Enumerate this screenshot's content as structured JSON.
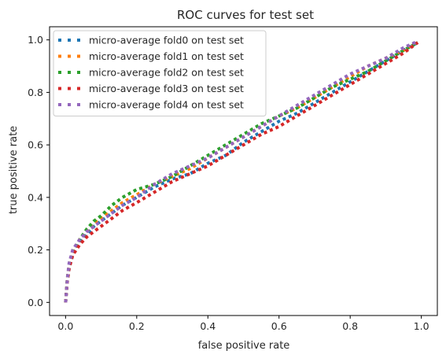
{
  "chart_data": {
    "type": "line",
    "title": "ROC curves for test set",
    "xlabel": "false positive rate",
    "ylabel": "true positive rate",
    "xlim": [
      -0.045,
      1.045
    ],
    "ylim": [
      -0.05,
      1.05
    ],
    "xticks": [
      "0.0",
      "0.2",
      "0.4",
      "0.6",
      "0.8",
      "1.0"
    ],
    "yticks": [
      "0.0",
      "0.2",
      "0.4",
      "0.6",
      "0.8",
      "1.0"
    ],
    "grid": false,
    "legend_position": "upper-left",
    "series": [
      {
        "name": "micro-average fold0 on test set",
        "color": "#1f77b4",
        "x": [
          0.0,
          0.005,
          0.01,
          0.02,
          0.04,
          0.06,
          0.08,
          0.1,
          0.13,
          0.16,
          0.2,
          0.25,
          0.3,
          0.35,
          0.4,
          0.45,
          0.5,
          0.55,
          0.6,
          0.65,
          0.7,
          0.75,
          0.8,
          0.85,
          0.9,
          0.95,
          0.99
        ],
        "y": [
          0.0,
          0.08,
          0.13,
          0.18,
          0.23,
          0.26,
          0.29,
          0.31,
          0.34,
          0.37,
          0.4,
          0.44,
          0.47,
          0.49,
          0.53,
          0.56,
          0.61,
          0.65,
          0.69,
          0.72,
          0.76,
          0.8,
          0.84,
          0.88,
          0.92,
          0.96,
          0.99
        ]
      },
      {
        "name": "micro-average fold1 on test set",
        "color": "#ff7f0e",
        "x": [
          0.0,
          0.005,
          0.01,
          0.02,
          0.04,
          0.06,
          0.08,
          0.1,
          0.13,
          0.16,
          0.2,
          0.25,
          0.3,
          0.35,
          0.4,
          0.45,
          0.5,
          0.55,
          0.6,
          0.65,
          0.7,
          0.75,
          0.8,
          0.85,
          0.9,
          0.95,
          0.99
        ],
        "y": [
          0.0,
          0.09,
          0.14,
          0.19,
          0.24,
          0.27,
          0.3,
          0.32,
          0.35,
          0.38,
          0.41,
          0.45,
          0.48,
          0.51,
          0.55,
          0.59,
          0.63,
          0.67,
          0.71,
          0.74,
          0.78,
          0.82,
          0.86,
          0.9,
          0.93,
          0.96,
          0.995
        ]
      },
      {
        "name": "micro-average fold2 on test set",
        "color": "#2ca02c",
        "x": [
          0.0,
          0.005,
          0.01,
          0.02,
          0.04,
          0.06,
          0.08,
          0.1,
          0.13,
          0.16,
          0.2,
          0.25,
          0.3,
          0.35,
          0.4,
          0.45,
          0.5,
          0.55,
          0.6,
          0.65,
          0.7,
          0.75,
          0.8,
          0.85,
          0.9,
          0.95,
          0.99
        ],
        "y": [
          0.0,
          0.09,
          0.14,
          0.19,
          0.24,
          0.28,
          0.31,
          0.33,
          0.37,
          0.4,
          0.43,
          0.45,
          0.48,
          0.52,
          0.56,
          0.6,
          0.64,
          0.68,
          0.71,
          0.74,
          0.78,
          0.82,
          0.85,
          0.88,
          0.92,
          0.96,
          0.99
        ]
      },
      {
        "name": "micro-average fold3 on test set",
        "color": "#d62728",
        "x": [
          0.0,
          0.005,
          0.01,
          0.02,
          0.04,
          0.06,
          0.08,
          0.1,
          0.13,
          0.16,
          0.2,
          0.25,
          0.3,
          0.35,
          0.4,
          0.45,
          0.5,
          0.55,
          0.6,
          0.65,
          0.7,
          0.75,
          0.8,
          0.85,
          0.9,
          0.95,
          0.99
        ],
        "y": [
          0.0,
          0.08,
          0.13,
          0.18,
          0.22,
          0.25,
          0.27,
          0.29,
          0.32,
          0.35,
          0.38,
          0.42,
          0.46,
          0.49,
          0.52,
          0.56,
          0.6,
          0.64,
          0.67,
          0.71,
          0.75,
          0.79,
          0.83,
          0.87,
          0.91,
          0.95,
          0.99
        ]
      },
      {
        "name": "micro-average fold4 on test set",
        "color": "#9467bd",
        "x": [
          0.0,
          0.005,
          0.01,
          0.02,
          0.04,
          0.06,
          0.08,
          0.1,
          0.13,
          0.16,
          0.2,
          0.25,
          0.3,
          0.35,
          0.4,
          0.45,
          0.5,
          0.55,
          0.6,
          0.65,
          0.7,
          0.75,
          0.8,
          0.85,
          0.9,
          0.95,
          0.99
        ],
        "y": [
          0.0,
          0.09,
          0.15,
          0.2,
          0.24,
          0.27,
          0.29,
          0.31,
          0.34,
          0.37,
          0.4,
          0.45,
          0.49,
          0.52,
          0.55,
          0.59,
          0.63,
          0.67,
          0.71,
          0.75,
          0.79,
          0.83,
          0.87,
          0.9,
          0.93,
          0.97,
          0.995
        ]
      }
    ]
  }
}
